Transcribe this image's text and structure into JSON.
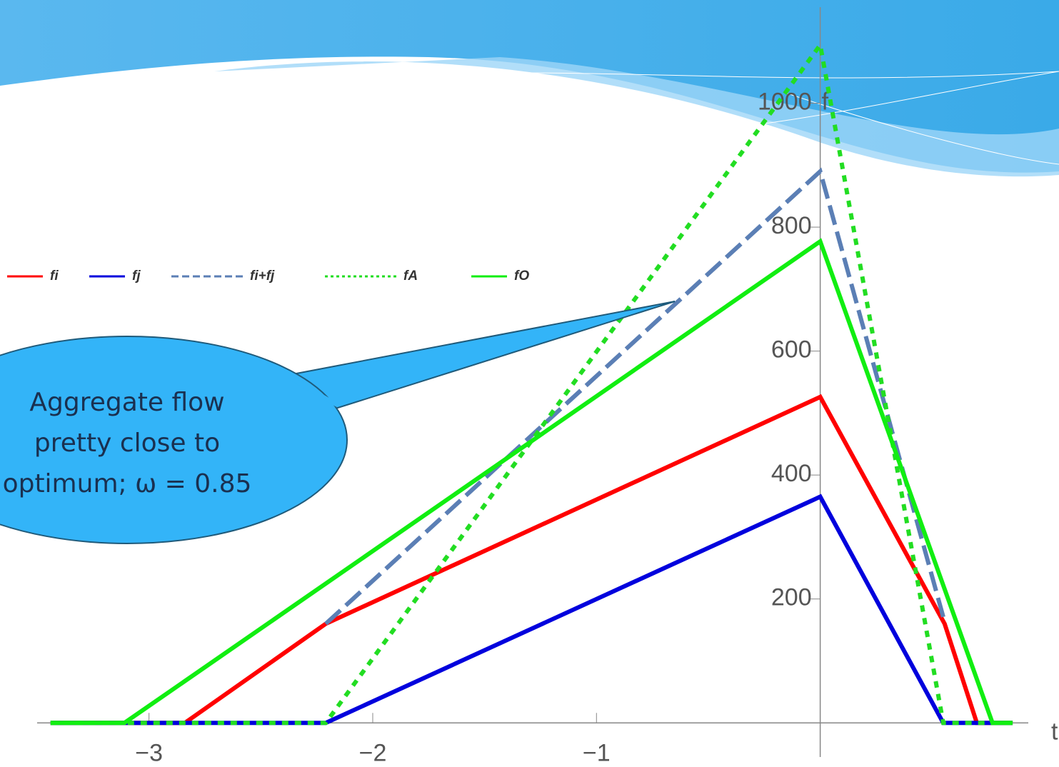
{
  "chart_data": {
    "type": "line",
    "x_label": "t",
    "y_label": "f",
    "annotation": [
      "Aggregate flow",
      "pretty close to",
      "optimum; ω = 0.85"
    ],
    "xlim": [
      -3.5,
      0.93
    ],
    "ylim": [
      -55,
      1155
    ],
    "xticks": [
      {
        "value": -3,
        "label": "−3"
      },
      {
        "value": -2,
        "label": "−2"
      },
      {
        "value": -1,
        "label": "−1"
      }
    ],
    "yticks": [
      200,
      400,
      600,
      800,
      1000
    ],
    "series": [
      {
        "name": "fi",
        "color": "#ff0000",
        "dash": "solid",
        "x": [
          -3.44,
          -2.84,
          -2.21,
          0,
          0.556,
          0.7,
          0.86
        ],
        "values": [
          0,
          0,
          160,
          526,
          160,
          0,
          0
        ]
      },
      {
        "name": "fj",
        "color": "#0000dd",
        "dash": "solid",
        "x": [
          -3.44,
          -2.21,
          0,
          0.55,
          0.86
        ],
        "values": [
          0,
          0,
          365,
          0,
          0
        ]
      },
      {
        "name": "fi+fj",
        "color": "#5b7fb5",
        "dash": "dashed",
        "x": [
          -2.21,
          0,
          0.55
        ],
        "values": [
          160,
          890,
          171
        ]
      },
      {
        "name": "fA",
        "color": "#22dd22",
        "dash": "dotted",
        "x": [
          -3.44,
          -2.21,
          0,
          0.55,
          0.86
        ],
        "values": [
          0,
          0,
          1094,
          0,
          0
        ]
      },
      {
        "name": "fO",
        "color": "#11ee11",
        "dash": "solid",
        "x": [
          -3.44,
          -3.11,
          0,
          0.77,
          0.86
        ],
        "values": [
          0,
          0,
          777,
          0,
          0
        ]
      }
    ]
  }
}
